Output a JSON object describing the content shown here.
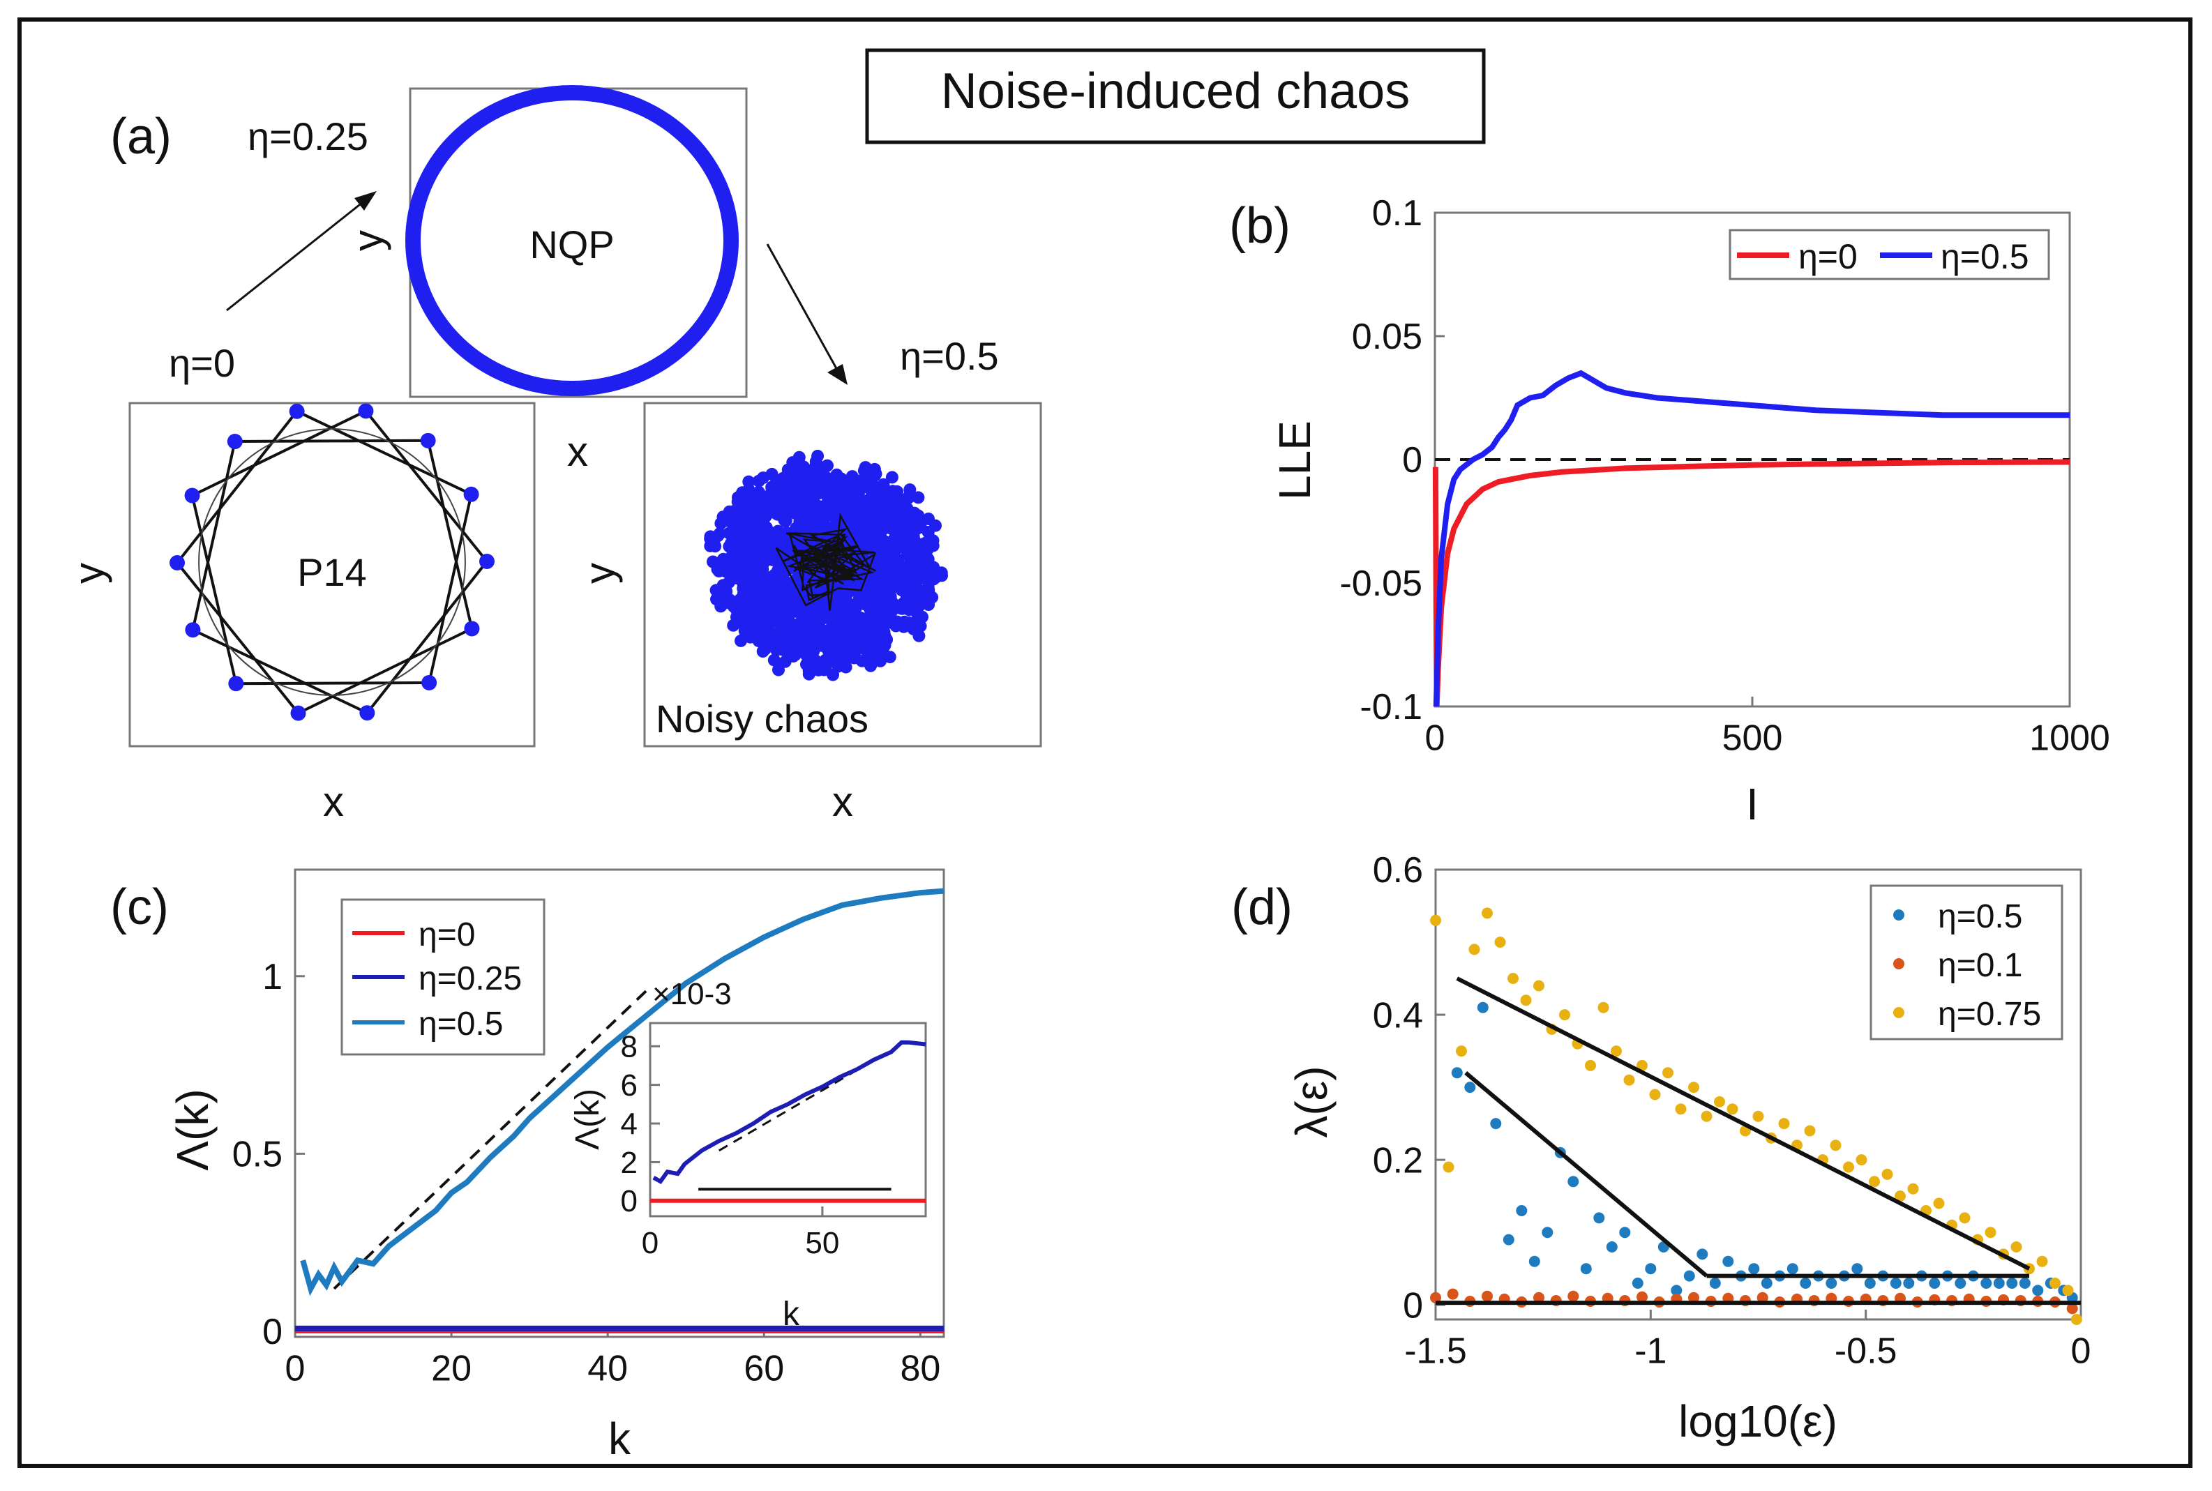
{
  "figure": {
    "title": "Noise-induced chaos",
    "panel_labels": [
      "(a)",
      "(b)",
      "(c)",
      "(d)"
    ],
    "colors": {
      "red": "#ee1c25",
      "blue": "#1f1ff0",
      "navy": "#1d1db4",
      "lightblue": "#1f7bc0",
      "orange": "#d9541a",
      "gold": "#e8b011",
      "black": "#111111"
    }
  },
  "chart_data": [
    {
      "panel": "(a)",
      "type": "scatter",
      "axis_labels": {
        "x": "x",
        "y": "y"
      },
      "subplots": [
        {
          "id": "nqp",
          "eta_label": "η=0.25",
          "annotation": "NQP",
          "xlabel": "",
          "ylabel": "y"
        },
        {
          "id": "p14",
          "eta_label": "η=0",
          "annotation": "P14",
          "xlabel": "x",
          "ylabel": "y"
        },
        {
          "id": "chaos",
          "eta_label": "η=0.5",
          "annotation": "Noisy chaos",
          "xlabel": "x",
          "ylabel": "y"
        }
      ],
      "between_label": "x"
    },
    {
      "panel": "(b)",
      "type": "line",
      "xlabel": "I",
      "ylabel": "LLE",
      "xlim": [
        0,
        1000
      ],
      "ylim": [
        -0.1,
        0.1
      ],
      "x_ticks": [
        0,
        500,
        1000
      ],
      "x_tick_labels": [
        "0",
        "500",
        "1000"
      ],
      "y_ticks": [
        -0.1,
        -0.05,
        0,
        0.05,
        0.1
      ],
      "y_tick_labels": [
        "-0.1",
        "-0.05",
        "0",
        "0.05",
        "0.1"
      ],
      "legend_position": "top-right",
      "series": [
        {
          "name": "η=0",
          "color": "red",
          "x": [
            1,
            2,
            3,
            5,
            10,
            20,
            30,
            50,
            75,
            100,
            150,
            200,
            300,
            400,
            500,
            600,
            800,
            1000
          ],
          "y": [
            -0.003,
            -0.06,
            -0.1,
            -0.085,
            -0.06,
            -0.038,
            -0.028,
            -0.018,
            -0.012,
            -0.009,
            -0.0065,
            -0.005,
            -0.0035,
            -0.0028,
            -0.0022,
            -0.0018,
            -0.0012,
            -0.001
          ]
        },
        {
          "name": "η=0.5",
          "color": "blue",
          "x": [
            2,
            5,
            10,
            20,
            30,
            40,
            50,
            60,
            75,
            90,
            100,
            110,
            120,
            130,
            150,
            170,
            190,
            210,
            230,
            250,
            270,
            300,
            350,
            400,
            450,
            500,
            550,
            600,
            650,
            700,
            750,
            800,
            850,
            900,
            950,
            1000
          ],
          "y": [
            -0.1,
            -0.07,
            -0.04,
            -0.018,
            -0.008,
            -0.004,
            -0.002,
            0.0,
            0.002,
            0.005,
            0.009,
            0.012,
            0.016,
            0.022,
            0.025,
            0.026,
            0.03,
            0.033,
            0.035,
            0.032,
            0.029,
            0.027,
            0.025,
            0.024,
            0.023,
            0.022,
            0.021,
            0.02,
            0.0195,
            0.019,
            0.0185,
            0.018,
            0.018,
            0.018,
            0.018,
            0.018
          ]
        }
      ],
      "reference_line": {
        "y": 0,
        "style": "dashed"
      }
    },
    {
      "panel": "(c)",
      "type": "line",
      "xlabel": "k",
      "ylabel": "Λ(k)",
      "xlim": [
        0,
        83
      ],
      "ylim": [
        0,
        1.3
      ],
      "x_ticks": [
        0,
        20,
        40,
        60,
        80
      ],
      "x_tick_labels": [
        "0",
        "20",
        "40",
        "60",
        "80"
      ],
      "y_ticks": [
        0,
        0.5,
        1
      ],
      "y_tick_labels": [
        "0",
        "0.5",
        "1"
      ],
      "legend_position": "top-left",
      "series": [
        {
          "name": "η=0",
          "color": "red",
          "x": [
            0,
            83
          ],
          "y": [
            0,
            0
          ]
        },
        {
          "name": "η=0.25",
          "color": "navy",
          "x": [
            0,
            83
          ],
          "y": [
            0.008,
            0.008
          ]
        },
        {
          "name": "η=0.5",
          "color": "lightblue",
          "x": [
            1,
            2,
            3,
            4,
            5,
            6,
            8,
            10,
            12,
            15,
            18,
            20,
            22,
            25,
            28,
            30,
            35,
            40,
            45,
            50,
            55,
            60,
            65,
            70,
            75,
            80,
            83
          ],
          "y": [
            0.2,
            0.12,
            0.16,
            0.13,
            0.18,
            0.14,
            0.2,
            0.19,
            0.24,
            0.29,
            0.34,
            0.39,
            0.42,
            0.49,
            0.55,
            0.6,
            0.7,
            0.8,
            0.89,
            0.98,
            1.05,
            1.11,
            1.16,
            1.2,
            1.22,
            1.235,
            1.24
          ]
        }
      ],
      "fit_line": {
        "x": [
          5,
          45
        ],
        "y": [
          0.12,
          0.96
        ]
      },
      "inset": {
        "xlabel": "k",
        "ylabel": "Λ(k)",
        "exponent_label": "×10-3",
        "xlim": [
          0,
          80
        ],
        "ylim": [
          -0.8,
          9.2
        ],
        "x_ticks": [
          0,
          50
        ],
        "x_tick_labels": [
          "0",
          "50"
        ],
        "y_ticks": [
          0,
          2,
          4,
          6,
          8
        ],
        "y_tick_labels": [
          "0",
          "2",
          "4",
          "6",
          "8"
        ],
        "series": [
          {
            "name": "η=0.25",
            "color": "navy",
            "x": [
              1,
              3,
              5,
              8,
              10,
              15,
              20,
              25,
              30,
              35,
              40,
              45,
              50,
              55,
              60,
              65,
              70,
              73,
              75,
              80
            ],
            "y": [
              1.2,
              1.0,
              1.5,
              1.4,
              1.9,
              2.6,
              3.1,
              3.5,
              4.0,
              4.6,
              5.0,
              5.5,
              5.9,
              6.4,
              6.8,
              7.3,
              7.7,
              8.2,
              8.2,
              8.1
            ]
          },
          {
            "name": "η=0",
            "color": "red",
            "x": [
              0,
              80
            ],
            "y": [
              0,
              0
            ]
          }
        ],
        "fit_line": {
          "x": [
            20,
            70
          ],
          "y": [
            2.6,
            7.8
          ]
        },
        "flat_line": {
          "x": [
            14,
            70
          ],
          "y": [
            0.6,
            0.6
          ]
        }
      }
    },
    {
      "panel": "(d)",
      "type": "scatter",
      "xlabel": "log10(ε)",
      "ylabel": "λ(ε)",
      "xlim": [
        -1.5,
        0
      ],
      "ylim": [
        -0.02,
        0.6
      ],
      "x_ticks": [
        -1.5,
        -1,
        -0.5,
        0
      ],
      "x_tick_labels": [
        "-1.5",
        "-1",
        "-0.5",
        "0"
      ],
      "y_ticks": [
        0,
        0.2,
        0.4,
        0.6
      ],
      "y_tick_labels": [
        "0",
        "0.2",
        "0.4",
        "0.6"
      ],
      "legend_position": "top-right",
      "series": [
        {
          "name": "η=0.5",
          "color": "lightblue",
          "x": [
            -1.45,
            -1.42,
            -1.39,
            -1.36,
            -1.33,
            -1.3,
            -1.27,
            -1.24,
            -1.21,
            -1.18,
            -1.15,
            -1.12,
            -1.09,
            -1.06,
            -1.03,
            -1.0,
            -0.97,
            -0.94,
            -0.91,
            -0.88,
            -0.85,
            -0.82,
            -0.79,
            -0.76,
            -0.73,
            -0.7,
            -0.67,
            -0.64,
            -0.61,
            -0.58,
            -0.55,
            -0.52,
            -0.49,
            -0.46,
            -0.43,
            -0.4,
            -0.37,
            -0.34,
            -0.31,
            -0.28,
            -0.25,
            -0.22,
            -0.19,
            -0.16,
            -0.13,
            -0.1,
            -0.07,
            -0.04,
            -0.02
          ],
          "y": [
            0.32,
            0.3,
            0.41,
            0.25,
            0.09,
            0.13,
            0.06,
            0.1,
            0.21,
            0.17,
            0.05,
            0.12,
            0.08,
            0.1,
            0.03,
            0.05,
            0.08,
            0.02,
            0.04,
            0.07,
            0.03,
            0.06,
            0.04,
            0.05,
            0.03,
            0.04,
            0.05,
            0.03,
            0.04,
            0.03,
            0.04,
            0.05,
            0.03,
            0.04,
            0.03,
            0.03,
            0.04,
            0.03,
            0.04,
            0.03,
            0.04,
            0.03,
            0.03,
            0.03,
            0.03,
            0.02,
            0.03,
            0.02,
            0.01
          ]
        },
        {
          "name": "η=0.1",
          "color": "orange",
          "x": [
            -1.5,
            -1.46,
            -1.42,
            -1.38,
            -1.34,
            -1.3,
            -1.26,
            -1.22,
            -1.18,
            -1.14,
            -1.1,
            -1.06,
            -1.02,
            -0.98,
            -0.94,
            -0.9,
            -0.86,
            -0.82,
            -0.78,
            -0.74,
            -0.7,
            -0.66,
            -0.62,
            -0.58,
            -0.54,
            -0.5,
            -0.46,
            -0.42,
            -0.38,
            -0.34,
            -0.3,
            -0.26,
            -0.22,
            -0.18,
            -0.14,
            -0.1,
            -0.06,
            -0.02
          ],
          "y": [
            0.01,
            0.015,
            0.005,
            0.012,
            0.008,
            0.004,
            0.01,
            0.006,
            0.012,
            0.005,
            0.009,
            0.006,
            0.011,
            0.004,
            0.008,
            0.01,
            0.005,
            0.009,
            0.006,
            0.01,
            0.004,
            0.008,
            0.006,
            0.009,
            0.005,
            0.008,
            0.006,
            0.009,
            0.004,
            0.007,
            0.006,
            0.008,
            0.005,
            0.007,
            0.006,
            0.005,
            0.004,
            -0.005
          ]
        },
        {
          "name": "η=0.75",
          "color": "gold",
          "x": [
            -1.5,
            -1.47,
            -1.44,
            -1.41,
            -1.38,
            -1.35,
            -1.32,
            -1.29,
            -1.26,
            -1.23,
            -1.2,
            -1.17,
            -1.14,
            -1.11,
            -1.08,
            -1.05,
            -1.02,
            -0.99,
            -0.96,
            -0.93,
            -0.9,
            -0.87,
            -0.84,
            -0.81,
            -0.78,
            -0.75,
            -0.72,
            -0.69,
            -0.66,
            -0.63,
            -0.6,
            -0.57,
            -0.54,
            -0.51,
            -0.48,
            -0.45,
            -0.42,
            -0.39,
            -0.36,
            -0.33,
            -0.3,
            -0.27,
            -0.24,
            -0.21,
            -0.18,
            -0.15,
            -0.12,
            -0.09,
            -0.06,
            -0.03,
            -0.01
          ],
          "y": [
            0.53,
            0.19,
            0.35,
            0.49,
            0.54,
            0.5,
            0.45,
            0.42,
            0.44,
            0.38,
            0.4,
            0.36,
            0.33,
            0.41,
            0.35,
            0.31,
            0.33,
            0.29,
            0.32,
            0.27,
            0.3,
            0.26,
            0.28,
            0.27,
            0.24,
            0.26,
            0.23,
            0.25,
            0.22,
            0.24,
            0.2,
            0.22,
            0.19,
            0.2,
            0.17,
            0.18,
            0.15,
            0.16,
            0.13,
            0.14,
            0.11,
            0.12,
            0.09,
            0.1,
            0.07,
            0.08,
            0.05,
            0.06,
            0.03,
            0.02,
            -0.02
          ]
        }
      ],
      "fit_lines": [
        {
          "x": [
            -1.45,
            -0.12
          ],
          "y": [
            0.45,
            0.05
          ]
        },
        {
          "x": [
            -1.43,
            -0.87
          ],
          "y": [
            0.32,
            0.04
          ]
        },
        {
          "x": [
            -0.87,
            -0.12
          ],
          "y": [
            0.04,
            0.04
          ]
        },
        {
          "x": [
            -1.5,
            0
          ],
          "y": [
            0.003,
            0.003
          ]
        }
      ]
    }
  ]
}
